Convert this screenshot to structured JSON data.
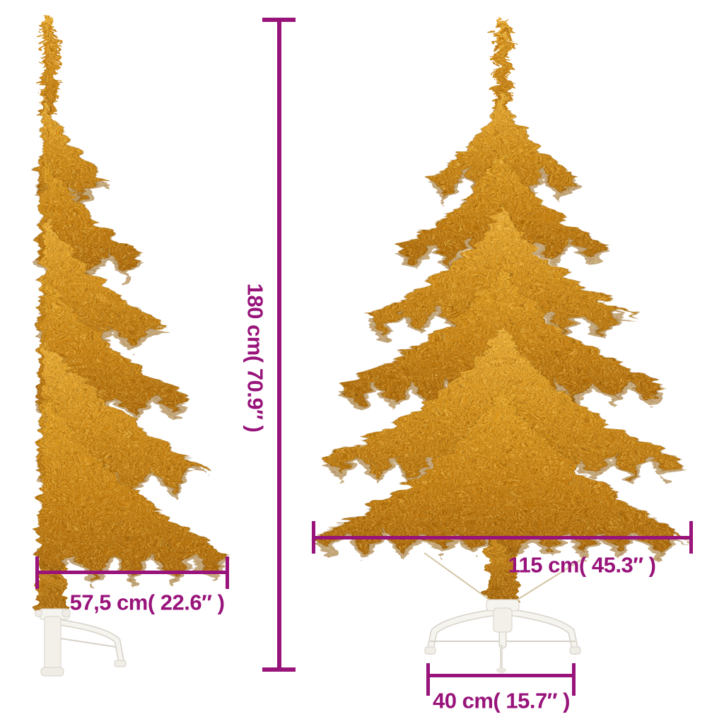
{
  "image": {
    "type": "product dimension diagram",
    "subject": "gold artificial half Christmas tree with white stand, side view and front view",
    "background_color": "#ffffff"
  },
  "dimensions": {
    "height": {
      "label": "180 cm( 70.9″ )"
    },
    "depth": {
      "label": "57,5 cm( 22.6″ )"
    },
    "width": {
      "label": "115 cm( 45.3″ )"
    },
    "stand_width": {
      "label": "40 cm( 15.7″ )"
    }
  },
  "colors": {
    "dimension_accent": "#98137a",
    "tree_gold": "#cf8a16",
    "tree_gold_dark": "#a26008",
    "stand_white": "#f6f4ef"
  }
}
